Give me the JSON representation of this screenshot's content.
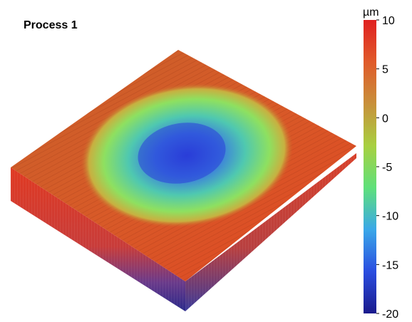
{
  "chart_data": {
    "type": "surface",
    "title": "Process 1",
    "colorbar": {
      "unit": "µm",
      "range": [
        -20,
        10
      ],
      "ticks": [
        10,
        5,
        0,
        -5,
        -10,
        -15,
        -20
      ],
      "colors": [
        "#1a1a8c",
        "#2a4de0",
        "#3aa8e8",
        "#5fe07a",
        "#a8d040",
        "#c8903a",
        "#e05a2a",
        "#e02020"
      ]
    },
    "surface": {
      "plateau_height_um": 8,
      "crater_min_um": -18,
      "description_level": "crater"
    }
  }
}
